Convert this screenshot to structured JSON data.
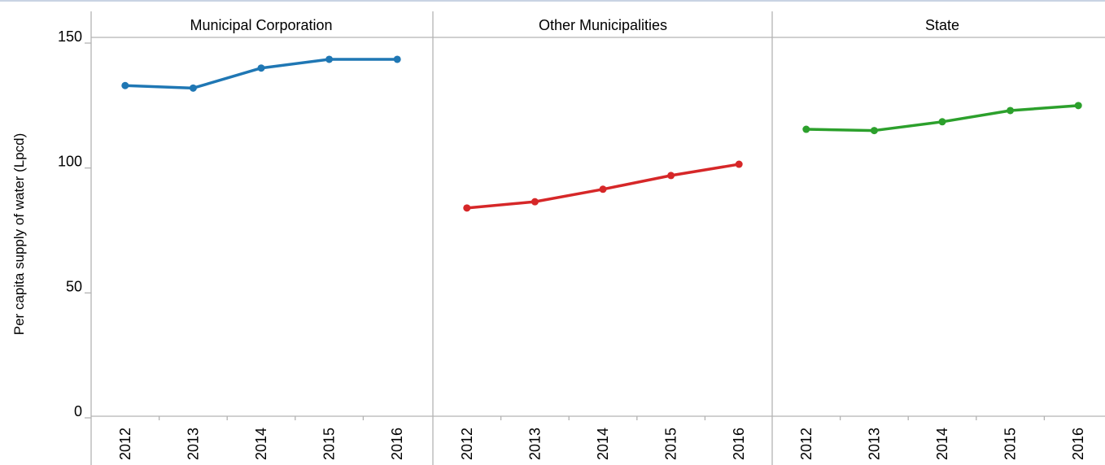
{
  "chart_data": {
    "type": "line",
    "layout": "small-multiples",
    "ylabel": "Per capita supply of water (Lpcd)",
    "ylim": [
      0,
      150
    ],
    "yticks": [
      0,
      50,
      100,
      150
    ],
    "grid": false,
    "legend": "none",
    "x": [
      "2012",
      "2013",
      "2014",
      "2015",
      "2016"
    ],
    "panels": [
      {
        "title": "Municipal Corporation",
        "color": "#1f77b4",
        "values": [
          133,
          132,
          140,
          143.5,
          143.5
        ]
      },
      {
        "title": "Other Municipalities",
        "color": "#d62728",
        "values": [
          84,
          86.5,
          91.5,
          97,
          101.5
        ]
      },
      {
        "title": "State",
        "color": "#2ca02c",
        "values": [
          115.5,
          115,
          118.5,
          123,
          125
        ]
      }
    ]
  }
}
